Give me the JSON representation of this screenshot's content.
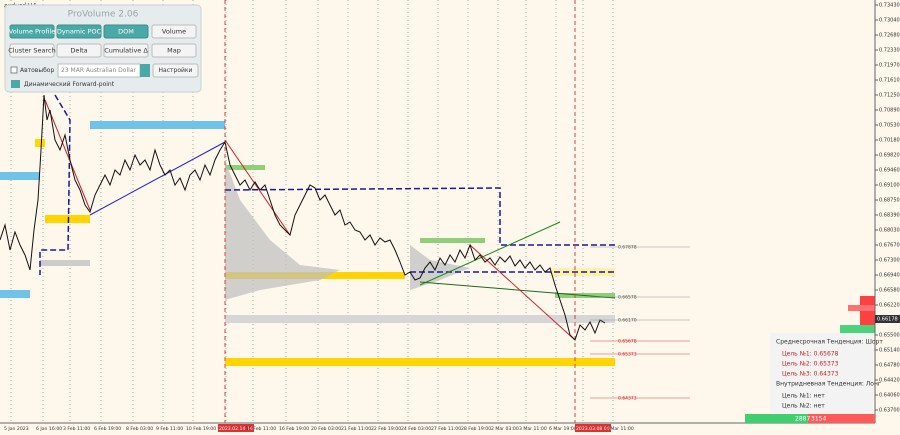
{
  "symbol": "audusd,H4",
  "panel": {
    "title": "ProVolume 2.06",
    "buttons": [
      "Volume Profile",
      "Dynamic POC",
      "DOM",
      "Volume",
      "Cluster Search",
      "Delta",
      "Cumulative Δ",
      "Map"
    ],
    "checkbox": "Автовыбор",
    "instrument": "23 MAR Australian Dollar",
    "settings": "Настройки",
    "forward": "Динамический Forward-point"
  },
  "price_axis": [
    "0.73430",
    "0.73040",
    "0.72680",
    "0.72330",
    "0.71970",
    "0.71610",
    "0.71250",
    "0.70890",
    "0.70530",
    "0.70180",
    "0.69820",
    "0.69460",
    "0.69100",
    "0.68750",
    "0.68390",
    "0.68030",
    "0.67670",
    "0.67300",
    "0.66940",
    "0.66580",
    "0.66220",
    "0.65860",
    "0.65500",
    "0.65140",
    "0.64780",
    "0.64420",
    "0.64060",
    "0.63700"
  ],
  "current_price": "0.66178",
  "time_axis": [
    "5 Jan 2023",
    "6 Jan 16:00",
    "3 Feb 11:00",
    "6 Feb 19:00",
    "8 Feb 03:00",
    "9 Feb 11:00",
    "10 Feb 19:00",
    "2023.02.14 16:00",
    "15 Feb 11:00",
    "16 Feb 19:00",
    "20 Feb 03:00",
    "21 Feb 11:00",
    "22 Feb 19:00",
    "24 Feb 03:00",
    "27 Feb 11:00",
    "28 Feb 19:00",
    "2 Mar 03:00",
    "3 Mar 11:00",
    "6 Mar 19:00",
    "2023.03.08 00:00",
    "9 Mar 11:00"
  ],
  "levels": [
    "0.67878",
    "0.66578",
    "0.66170",
    "0.65678",
    "0.65373",
    "0.64373"
  ],
  "info": {
    "medium": "Среднесрочная Тенденция: Шорт",
    "targets": [
      "Цель №1: 0.65678",
      "Цель №2: 0.65373",
      "Цель №3: 0.64373"
    ],
    "intraday": "Внутридневная Тенденция: Лонг",
    "intraday_targets": [
      "Цель №1: нет",
      "Цель №2: нет"
    ]
  },
  "volume": [
    "2887",
    "3154"
  ]
}
